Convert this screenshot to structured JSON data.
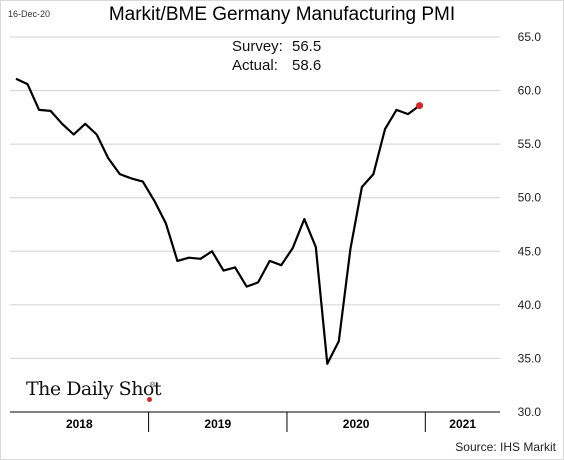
{
  "header": {
    "date": "16-Dec-20",
    "title": "Markit/BME Germany Manufacturing PMI"
  },
  "annotation": {
    "survey_label": "Survey:",
    "survey_value": "56.5",
    "actual_label": "Actual:",
    "actual_value": "58.6"
  },
  "footer": {
    "source": "Source: IHS Markit",
    "logo_text": "The Daily Shot"
  },
  "colors": {
    "line": "#000000",
    "highlight": "#d62728",
    "grid": "#d0d0d0"
  },
  "chart_data": {
    "type": "line",
    "title": "Markit/BME Germany Manufacturing PMI",
    "xlabel": "",
    "ylabel": "",
    "ylim": [
      30,
      65
    ],
    "yticks": [
      "30.0",
      "35.0",
      "40.0",
      "45.0",
      "50.0",
      "55.0",
      "60.0",
      "65.0"
    ],
    "grid": "horizontal",
    "year_labels": [
      "2018",
      "2019",
      "2020",
      "2021"
    ],
    "x": [
      "2018-01",
      "2018-02",
      "2018-03",
      "2018-04",
      "2018-05",
      "2018-06",
      "2018-07",
      "2018-08",
      "2018-09",
      "2018-10",
      "2018-11",
      "2018-12",
      "2019-01",
      "2019-02",
      "2019-03",
      "2019-04",
      "2019-05",
      "2019-06",
      "2019-07",
      "2019-08",
      "2019-09",
      "2019-10",
      "2019-11",
      "2019-12",
      "2020-01",
      "2020-02",
      "2020-03",
      "2020-04",
      "2020-05",
      "2020-06",
      "2020-07",
      "2020-08",
      "2020-09",
      "2020-10",
      "2020-11",
      "2020-12"
    ],
    "series": [
      {
        "values": [
          61.1,
          60.6,
          58.2,
          58.1,
          56.9,
          55.9,
          56.9,
          55.9,
          53.7,
          52.2,
          51.8,
          51.5,
          49.7,
          47.6,
          44.1,
          44.4,
          44.3,
          45.0,
          43.2,
          43.5,
          41.7,
          42.1,
          44.1,
          43.7,
          45.3,
          48.0,
          45.4,
          34.5,
          36.6,
          45.2,
          51.0,
          52.2,
          56.4,
          58.2,
          57.8,
          58.6
        ]
      }
    ],
    "highlight_point": {
      "x": "2020-12",
      "value": 58.6
    }
  }
}
